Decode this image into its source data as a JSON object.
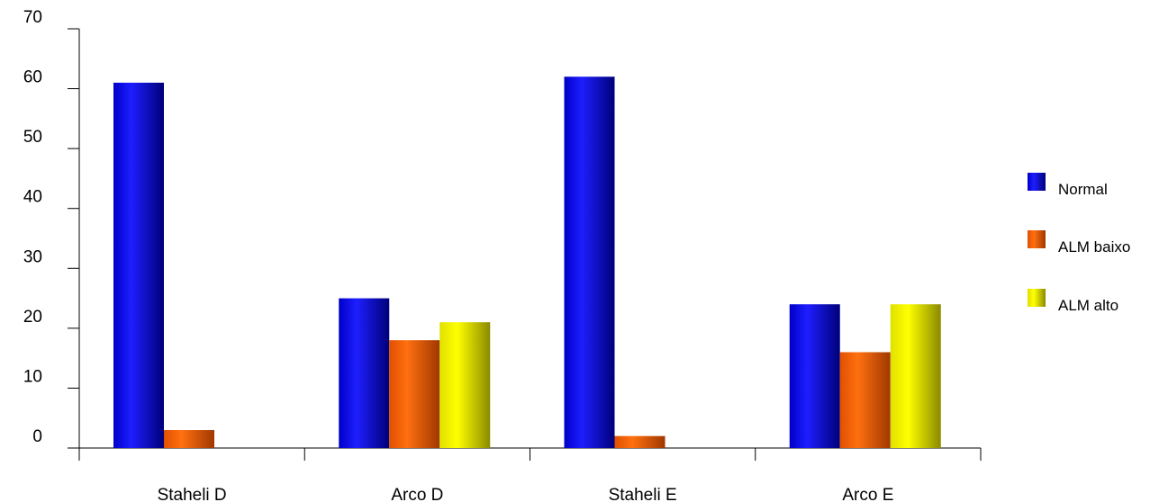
{
  "chart_data": {
    "type": "bar",
    "categories": [
      "Staheli D",
      "Arco D",
      "Staheli E",
      "Arco E"
    ],
    "series": [
      {
        "name": "Normal",
        "values": [
          61,
          25,
          62,
          24
        ],
        "color": "#0000ff"
      },
      {
        "name": "ALM baixo",
        "values": [
          3,
          18,
          2,
          16
        ],
        "color": "#ff6600"
      },
      {
        "name": "ALM alto",
        "values": [
          0,
          21,
          0,
          24
        ],
        "color": "#ffff00"
      }
    ],
    "yticks": [
      "0",
      "10",
      "20",
      "30",
      "40",
      "50",
      "60",
      "70"
    ],
    "ylim": [
      0,
      70
    ],
    "grid": false,
    "legend_position": "right"
  }
}
